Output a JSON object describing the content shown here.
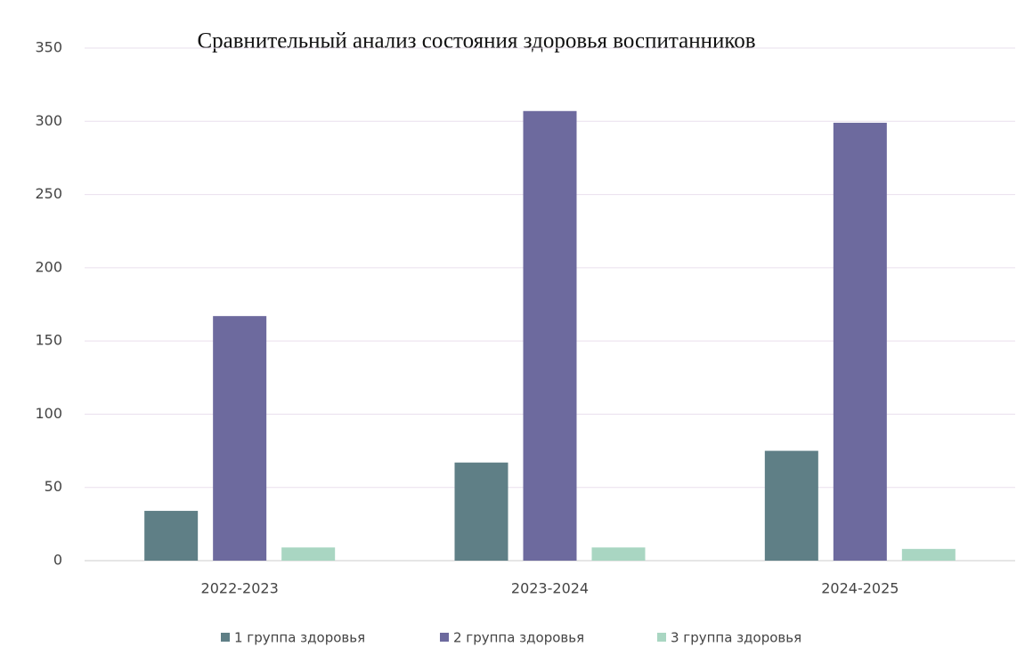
{
  "chart_data": {
    "type": "bar",
    "title": "Сравнительный анализ состояния здоровья воспитанников",
    "categories": [
      "2022-2023",
      "2023-2024",
      "2024-2025"
    ],
    "series": [
      {
        "name": "1 группа здоровья",
        "color": "#5f7f86",
        "values": [
          34,
          67,
          75
        ]
      },
      {
        "name": "2 группа здоровья",
        "color": "#6d6a9e",
        "values": [
          167,
          307,
          299
        ]
      },
      {
        "name": "3 группа здоровья",
        "color": "#a9d6c2",
        "values": [
          9,
          9,
          8
        ]
      }
    ],
    "ylim": [
      0,
      350
    ],
    "yticks": [
      0,
      50,
      100,
      150,
      200,
      250,
      300,
      350
    ],
    "grid": true,
    "legend": "bottom"
  }
}
